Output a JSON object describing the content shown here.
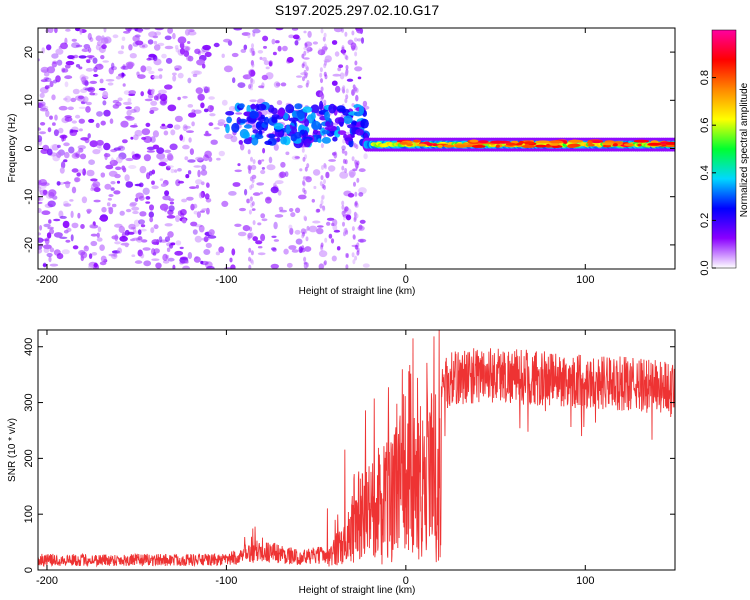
{
  "chart_data": [
    {
      "type": "heatmap",
      "title": "S197.2025.297.02.10.G17",
      "xlabel": "Height of straight line (km)",
      "ylabel": "Frequency (Hz)",
      "xlim": [
        -205,
        150
      ],
      "ylim": [
        -25,
        25
      ],
      "xticks": [
        -200,
        -100,
        0,
        100
      ],
      "yticks": [
        -20,
        -10,
        0,
        10,
        20
      ],
      "colorbar": {
        "label": "Normalized spectral amplitude",
        "range": [
          0,
          1
        ],
        "ticks": [
          0.0,
          0.2,
          0.4,
          0.6,
          0.8
        ],
        "tick_labels": [
          "0.0",
          "0.2",
          "0.4",
          "0.6",
          "0.8"
        ],
        "colors": [
          "#ffffff",
          "#8a00ff",
          "#0000ff",
          "#00d8ff",
          "#00ff30",
          "#ffff00",
          "#ff8800",
          "#ff0000",
          "#ff00a0"
        ]
      },
      "regions": [
        {
          "x": [
            -205,
            -100
          ],
          "description": "scattered weak noise, amplitude 0.0-0.2"
        },
        {
          "x": [
            -100,
            -22
          ],
          "description": "intermittent signal near 0-10 Hz"
        },
        {
          "x": [
            -22,
            150
          ],
          "description": "strong signal band near 0-2 Hz, amplitude up to 1.0"
        }
      ]
    },
    {
      "type": "line",
      "title": "",
      "xlabel": "Height of straight line (km)",
      "ylabel": "SNR (10 * v/v)",
      "xlim": [
        -205,
        150
      ],
      "ylim": [
        0,
        430
      ],
      "xticks": [
        -200,
        -100,
        0,
        100
      ],
      "yticks": [
        0,
        100,
        200,
        300,
        400
      ],
      "color": "#ee3333",
      "envelope": {
        "x": [
          -205,
          -100,
          -90,
          -80,
          -60,
          -45,
          -40,
          -35,
          -30,
          -25,
          -20,
          -15,
          -10,
          -5,
          0,
          5,
          10,
          15,
          20,
          25,
          30,
          40,
          50,
          60,
          70,
          80,
          90,
          100,
          110,
          120,
          130,
          140,
          150
        ],
        "y": [
          20,
          20,
          30,
          40,
          25,
          30,
          60,
          90,
          130,
          170,
          200,
          230,
          250,
          260,
          270,
          285,
          300,
          320,
          340,
          355,
          360,
          365,
          365,
          362,
          360,
          355,
          355,
          352,
          350,
          348,
          345,
          345,
          340
        ]
      }
    }
  ]
}
